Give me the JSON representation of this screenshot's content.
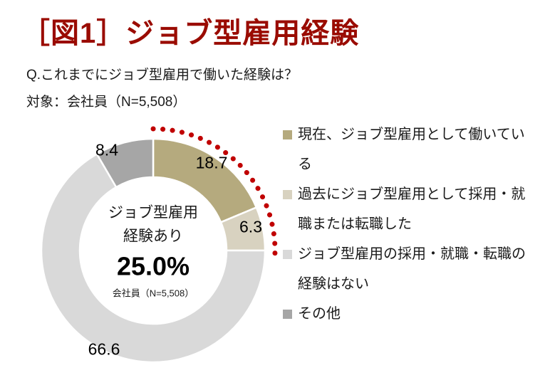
{
  "page": {
    "background": "#ffffff"
  },
  "header": {
    "title": "［図1］ジョブ型雇用経験",
    "title_color": "#9a0b00",
    "question": "Q.これまでにジョブ型雇用で働いた経験は？",
    "target": "対象：会社員（N=5,508）"
  },
  "chart_data": {
    "type": "pie",
    "subtype": "donut",
    "title": "ジョブ型雇用経験",
    "unit": "%",
    "categories": [
      "現在、ジョブ型雇用として働いている",
      "過去にジョブ型雇用として採用・就職または転職した",
      "ジョブ型雇用の採用・就職・転職の経験はない",
      "その他"
    ],
    "values": [
      18.7,
      6.3,
      66.6,
      8.4
    ],
    "colors": [
      "#b5aa7e",
      "#d8d2c0",
      "#d9d9d9",
      "#a6a6a6"
    ],
    "start_angle_deg": 0,
    "clockwise": true,
    "legend_position": "right",
    "center_label": {
      "line1": "ジョブ型雇用",
      "line2": "経験あり",
      "value": "25.0%",
      "note": "会社員（N=5,508）"
    },
    "highlight_arc": {
      "color": "#c00000",
      "style": "dotted",
      "from_value_pct": 0,
      "to_value_pct": 25
    }
  },
  "legend": {
    "items": [
      {
        "label": "現在、ジョブ型雇用として働いている"
      },
      {
        "label": "過去にジョブ型雇用として採用・就職または転職した"
      },
      {
        "label": "ジョブ型雇用の採用・就職・転職の経験はない"
      },
      {
        "label": "その他"
      }
    ]
  }
}
